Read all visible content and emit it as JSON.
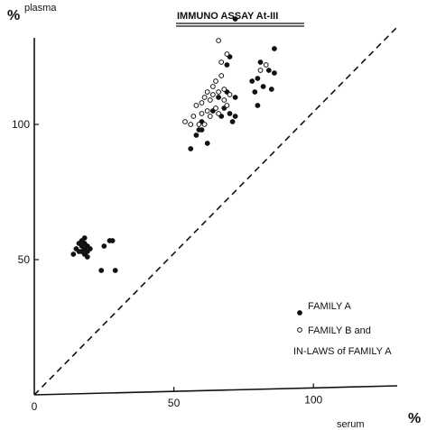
{
  "chart_data": {
    "type": "scatter",
    "title": "IMMUNO ASSAY At-III",
    "xlabel": "serum",
    "ylabel": "plasma",
    "x_unit": "%",
    "y_unit": "%",
    "xlim": [
      0,
      130
    ],
    "ylim": [
      0,
      136
    ],
    "xticks": [
      {
        "value": 0,
        "label": "0"
      },
      {
        "value": 50,
        "label": "50"
      },
      {
        "value": 100,
        "label": "100"
      }
    ],
    "yticks": [
      {
        "value": 50,
        "label": "50"
      },
      {
        "value": 100,
        "label": "100"
      }
    ],
    "grid": false,
    "legend_placement": "lower-right",
    "reference_line": {
      "style": "dashed",
      "from": [
        0,
        0
      ],
      "to": [
        130,
        136
      ]
    },
    "series": [
      {
        "name": "FAMILY A",
        "marker": "filled-circle",
        "points": [
          [
            14,
            52
          ],
          [
            15,
            54
          ],
          [
            16,
            53
          ],
          [
            16,
            56
          ],
          [
            17,
            55
          ],
          [
            17,
            53
          ],
          [
            17,
            57
          ],
          [
            18,
            52
          ],
          [
            18,
            54
          ],
          [
            18,
            56
          ],
          [
            19,
            55
          ],
          [
            19,
            53
          ],
          [
            18,
            58
          ],
          [
            20,
            54
          ],
          [
            19,
            51
          ],
          [
            25,
            55
          ],
          [
            24,
            46
          ],
          [
            27,
            57
          ],
          [
            28,
            57
          ],
          [
            29,
            46
          ],
          [
            56,
            91
          ],
          [
            58,
            96
          ],
          [
            59,
            98
          ],
          [
            60,
            101
          ],
          [
            60,
            98
          ],
          [
            62,
            93
          ],
          [
            64,
            105
          ],
          [
            67,
            103
          ],
          [
            69,
            112
          ],
          [
            70,
            104
          ],
          [
            71,
            101
          ],
          [
            72,
            103
          ],
          [
            72,
            110
          ],
          [
            69,
            122
          ],
          [
            70,
            125
          ],
          [
            72,
            139
          ],
          [
            80,
            107
          ],
          [
            80,
            117
          ],
          [
            78,
            116
          ],
          [
            79,
            112
          ],
          [
            81,
            123
          ],
          [
            82,
            114
          ],
          [
            84,
            120
          ],
          [
            85,
            113
          ],
          [
            86,
            128
          ],
          [
            86,
            119
          ],
          [
            68,
            106
          ],
          [
            66,
            110
          ]
        ]
      },
      {
        "name": "FAMILY B and IN-LAWS of FAMILY A",
        "marker": "open-circle",
        "points": [
          [
            54,
            101
          ],
          [
            56,
            100
          ],
          [
            57,
            103
          ],
          [
            58,
            107
          ],
          [
            59,
            100
          ],
          [
            60,
            104
          ],
          [
            60,
            108
          ],
          [
            61,
            100
          ],
          [
            62,
            105
          ],
          [
            62,
            112
          ],
          [
            63,
            109
          ],
          [
            64,
            111
          ],
          [
            64,
            114
          ],
          [
            65,
            116
          ],
          [
            65,
            106
          ],
          [
            66,
            104
          ],
          [
            66,
            112
          ],
          [
            67,
            118
          ],
          [
            67,
            123
          ],
          [
            66,
            131
          ],
          [
            68,
            113
          ],
          [
            68,
            109
          ],
          [
            69,
            107
          ],
          [
            70,
            111
          ],
          [
            69,
            126
          ],
          [
            81,
            120
          ],
          [
            83,
            122
          ],
          [
            63,
            103
          ],
          [
            61,
            110
          ]
        ]
      }
    ]
  }
}
